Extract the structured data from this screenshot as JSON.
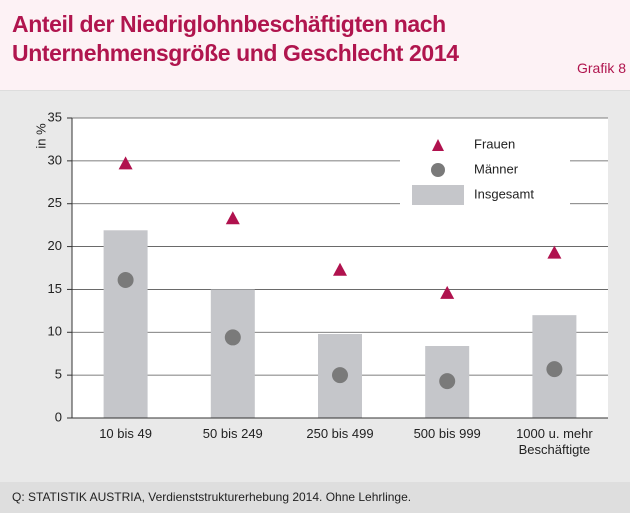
{
  "header": {
    "title": "Anteil der Niedriglohnbeschäftigten nach Unternehmensgröße und Geschlecht 2014",
    "label": "Grafik 8"
  },
  "chart_data": {
    "type": "bar",
    "ylabel": "in %",
    "categories": [
      "10 bis 49",
      "50 bis 249",
      "250 bis 499",
      "500 bis 999",
      "1000 u. mehr Beschäftigte"
    ],
    "series": [
      {
        "name": "Frauen",
        "color": "#b0124e",
        "marker": "triangle",
        "values": [
          29.7,
          23.3,
          17.3,
          14.6,
          19.3
        ]
      },
      {
        "name": "Männer",
        "color": "#7a7a7a",
        "marker": "circle",
        "values": [
          16.1,
          9.4,
          5.0,
          4.3,
          5.7
        ]
      },
      {
        "name": "Insgesamt",
        "color": "#c5c6ca",
        "marker": "bar",
        "values": [
          21.9,
          15.0,
          9.8,
          8.4,
          12.0
        ]
      }
    ],
    "ylim": [
      0,
      35
    ],
    "yticks": [
      0,
      5,
      10,
      15,
      20,
      25,
      30,
      35
    ],
    "grid": true,
    "legend": "upper right"
  },
  "footer": {
    "source": "Q: STATISTIK AUSTRIA, Verdienststrukturerhebung 2014. Ohne Lehrlinge."
  }
}
